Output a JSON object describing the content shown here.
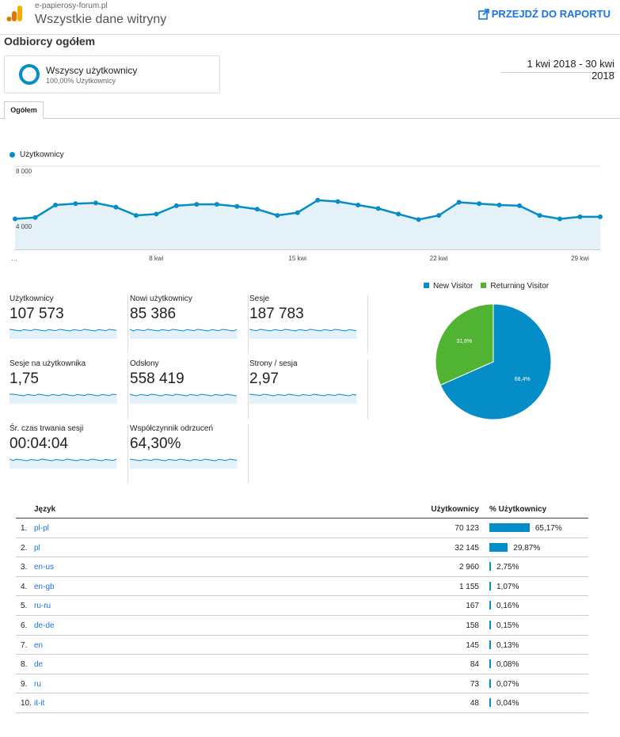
{
  "header": {
    "site": "e-papierosy-forum.pl",
    "view": "Wszystkie dane witryny",
    "report_link": "PRZEJDŹ DO RAPORTU"
  },
  "section_title": "Odbiorcy ogółem",
  "segment": {
    "name": "Wszyscy użytkownicy",
    "pct": "100,00% Użytkownicy"
  },
  "date_range": "1 kwi 2018 - 30 kwi 2018",
  "tab": "Ogółem",
  "chart_data": [
    {
      "type": "line",
      "series": [
        {
          "name": "Użytkownicy",
          "values": [
            4200,
            4300,
            5200,
            5300,
            5350,
            5050,
            4450,
            4550,
            5150,
            5250,
            5250,
            5100,
            4900,
            4450,
            4650,
            5550,
            5450,
            5200,
            4950,
            4550,
            4150,
            4450,
            5400,
            5300,
            5200,
            5150,
            4450,
            4200,
            4350,
            4350
          ]
        }
      ],
      "ylim": [
        2000,
        8000
      ],
      "y_ticks": [
        "8 000",
        "4 000"
      ],
      "x_labels": [
        "…",
        "8 kwi",
        "15 kwi",
        "22 kwi",
        "29 kwi"
      ],
      "color": "#058dc7",
      "fill": "#e4f1f8"
    },
    {
      "type": "pie",
      "legend": [
        "New Visitor",
        "Returning Visitor"
      ],
      "values": [
        68.4,
        31.6
      ],
      "labels": [
        "68,4%",
        "31,6%"
      ],
      "colors": [
        "#058dc7",
        "#50b432"
      ]
    }
  ],
  "metrics": [
    {
      "label": "Użytkownicy",
      "value": "107 573"
    },
    {
      "label": "Nowi użytkownicy",
      "value": "85 386"
    },
    {
      "label": "Sesje",
      "value": "187 783"
    },
    {
      "label": "Sesje na użytkownika",
      "value": "1,75"
    },
    {
      "label": "Odsłony",
      "value": "558 419"
    },
    {
      "label": "Strony / sesja",
      "value": "2,97"
    },
    {
      "label": "Śr. czas trwania sesji",
      "value": "00:04:04"
    },
    {
      "label": "Współczynnik odrzuceń",
      "value": "64,30%"
    }
  ],
  "table": {
    "headers": {
      "lang": "Język",
      "users": "Użytkownicy",
      "pct": "% Użytkownicy"
    },
    "rows": [
      {
        "num": "1.",
        "lang": "pl-pl",
        "users": "70 123",
        "pct": "65,17%",
        "frac": 0.6517
      },
      {
        "num": "2.",
        "lang": "pl",
        "users": "32 145",
        "pct": "29,87%",
        "frac": 0.2987
      },
      {
        "num": "3.",
        "lang": "en-us",
        "users": "2 960",
        "pct": "2,75%",
        "frac": 0.0275
      },
      {
        "num": "4.",
        "lang": "en-gb",
        "users": "1 155",
        "pct": "1,07%",
        "frac": 0.0107
      },
      {
        "num": "5.",
        "lang": "ru-ru",
        "users": "167",
        "pct": "0,16%",
        "frac": 0.0016
      },
      {
        "num": "6.",
        "lang": "de-de",
        "users": "158",
        "pct": "0,15%",
        "frac": 0.0015
      },
      {
        "num": "7.",
        "lang": "en",
        "users": "145",
        "pct": "0,13%",
        "frac": 0.0013
      },
      {
        "num": "8.",
        "lang": "de",
        "users": "84",
        "pct": "0,08%",
        "frac": 0.0008
      },
      {
        "num": "9.",
        "lang": "ru",
        "users": "73",
        "pct": "0,07%",
        "frac": 0.0007
      },
      {
        "num": "10.",
        "lang": "it-it",
        "users": "48",
        "pct": "0,04%",
        "frac": 0.0004
      }
    ]
  }
}
